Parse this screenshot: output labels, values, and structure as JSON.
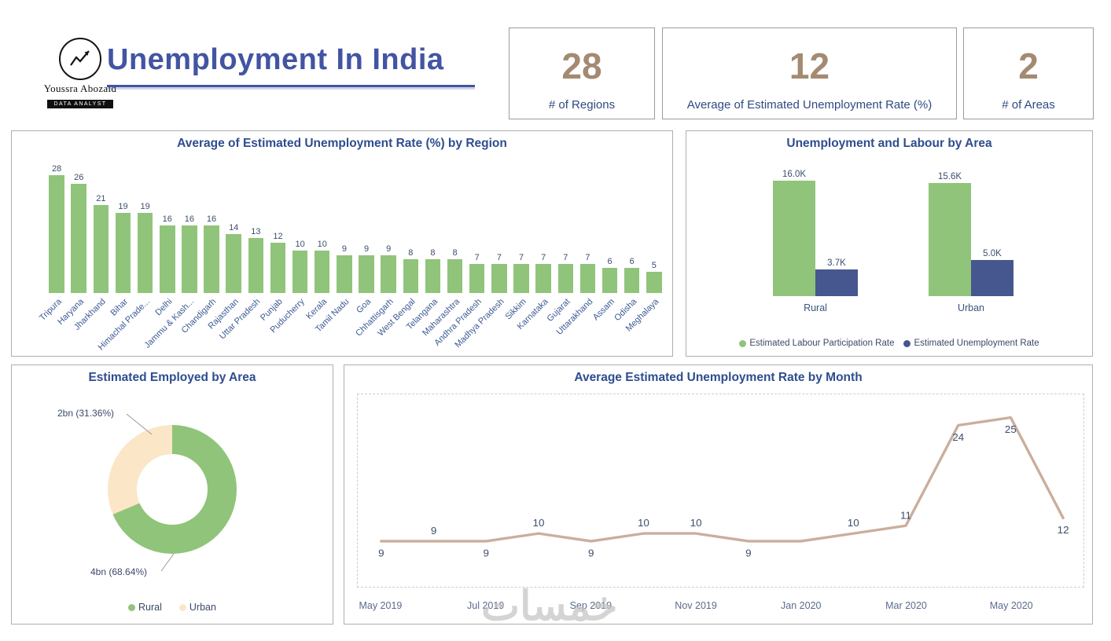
{
  "header": {
    "logo": {
      "name": "Youssra Abozaid",
      "role": "Data Analyst"
    },
    "title": "Unemployment In India",
    "kpis": [
      {
        "value": "28",
        "label": "# of Regions"
      },
      {
        "value": "12",
        "label": "Average of  Estimated Unemployment Rate (%)"
      },
      {
        "value": "2",
        "label": "# of Areas"
      }
    ]
  },
  "watermark": "خمسات",
  "colors": {
    "green": "#90c47a",
    "navy": "#46568e",
    "cream": "#fbe6c8",
    "tan": "#cbae9c",
    "title_blue": "#2e4d8e",
    "kpi_tan": "#a48a72"
  },
  "chart_data": [
    {
      "type": "bar",
      "title": "Average of Estimated Unemployment Rate (%) by Region",
      "categories": [
        "Tripura",
        "Haryana",
        "Jharkhand",
        "Bihar",
        "Himachal Prade...",
        "Delhi",
        "Jammu & Kash...",
        "Chandigarh",
        "Rajasthan",
        "Uttar Pradesh",
        "Punjab",
        "Puducherry",
        "Kerala",
        "Tamil Nadu",
        "Goa",
        "Chhattisgarh",
        "West Bengal",
        "Telangana",
        "Maharashtra",
        "Andhra Pradesh",
        "Madhya Pradesh",
        "Sikkim",
        "Karnataka",
        "Gujarat",
        "Uttarakhand",
        "Assam",
        "Odisha",
        "Meghalaya"
      ],
      "values": [
        28,
        26,
        21,
        19,
        19,
        16,
        16,
        16,
        14,
        13,
        12,
        10,
        10,
        9,
        9,
        9,
        8,
        8,
        8,
        7,
        7,
        7,
        7,
        7,
        7,
        6,
        6,
        5
      ],
      "bar_color": "#90c47a",
      "ylim": [
        0,
        28
      ],
      "grid": false
    },
    {
      "type": "grouped-bar",
      "title": "Unemployment and Labour by Area",
      "categories": [
        "Rural",
        "Urban"
      ],
      "series": [
        {
          "name": "Estimated Labour Participation Rate",
          "color": "#90c47a",
          "labels": [
            "16.0K",
            "15.6K"
          ],
          "values": [
            16.0,
            15.6
          ]
        },
        {
          "name": "Estimated Unemployment Rate",
          "color": "#46568e",
          "labels": [
            "3.7K",
            "5.0K"
          ],
          "values": [
            3.7,
            5.0
          ]
        }
      ],
      "legend_position": "bottom",
      "grid": false
    },
    {
      "type": "pie",
      "donut": true,
      "title": "Estimated Employed by Area",
      "slices": [
        {
          "name": "Rural",
          "value": "4bn",
          "pct": 68.64,
          "callout": "4bn (68.64%)",
          "color": "#90c47a"
        },
        {
          "name": "Urban",
          "value": "2bn",
          "pct": 31.36,
          "callout": "2bn (31.36%)",
          "color": "#fbe6c8"
        }
      ],
      "legend_position": "bottom"
    },
    {
      "type": "line",
      "title": "Average Estimated Unemployment Rate by Month",
      "x_tick_labels": [
        "May 2019",
        "Jul 2019",
        "Sep 2019",
        "Nov 2019",
        "Jan 2020",
        "Mar 2020",
        "May 2020"
      ],
      "values": [
        9,
        9,
        9,
        10,
        9,
        10,
        10,
        9,
        9,
        10,
        11,
        24,
        25,
        12
      ],
      "point_labels": [
        "9",
        "9",
        "9",
        "10",
        "9",
        "10",
        "10",
        "9",
        "",
        "10",
        "11",
        "24",
        "25",
        "12"
      ],
      "label_position": [
        "below",
        "above",
        "below",
        "above",
        "below",
        "above",
        "above",
        "below",
        "none",
        "above",
        "above",
        "below",
        "below",
        "below"
      ],
      "line_color": "#cbae9c",
      "ylim": [
        4.5,
        26
      ],
      "grid": "dashed-frame"
    }
  ]
}
